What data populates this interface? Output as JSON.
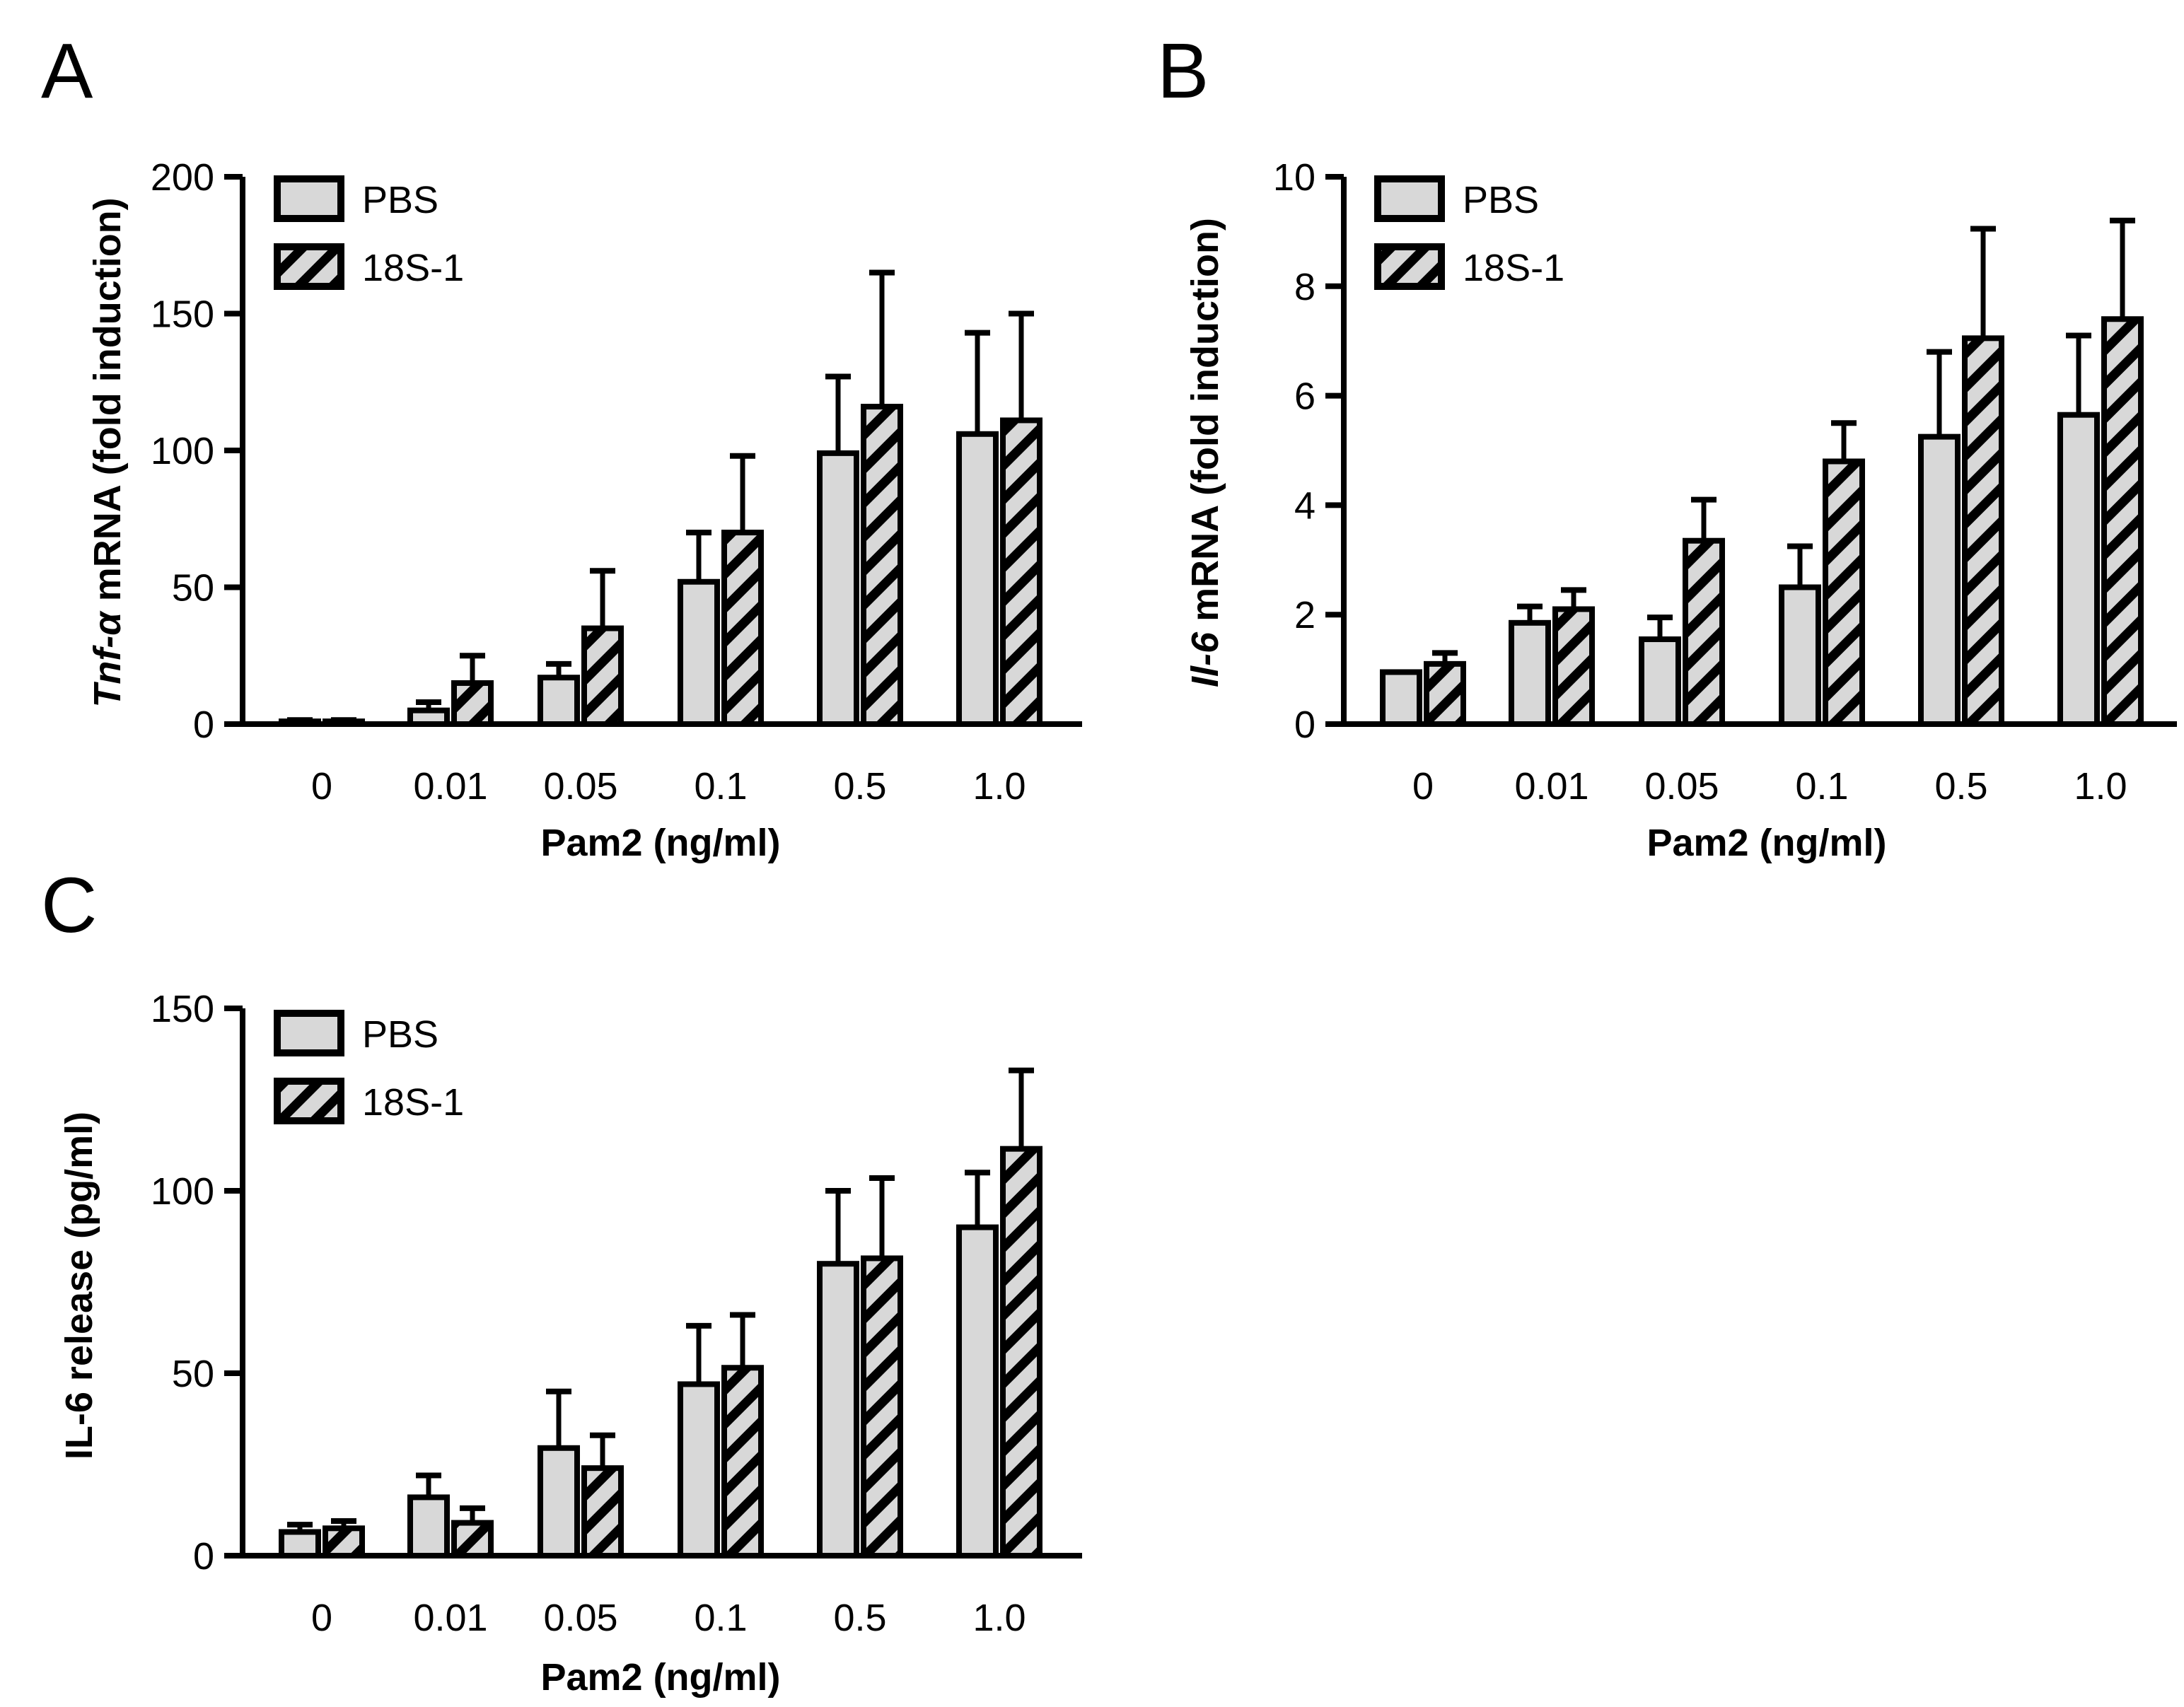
{
  "colors": {
    "bar_fill": "#d8d8d8",
    "stroke": "#000000",
    "hatch": "#000000",
    "background": "#ffffff"
  },
  "series_names": [
    "PBS",
    "18S-1"
  ],
  "chart_data": [
    {
      "panel": "A",
      "type": "bar",
      "categories": [
        "0",
        "0.01",
        "0.05",
        "0.1",
        "0.5",
        "1.0"
      ],
      "xlabel": "Pam2 (ng/ml)",
      "ylabel_italic": "Tnf-α",
      "ylabel_rest": " mRNA (fold induction)",
      "ylim": [
        0,
        200
      ],
      "yticks": [
        0,
        50,
        100,
        150,
        200
      ],
      "legend": [
        "PBS",
        "18S-1"
      ],
      "legend_position": "top-left",
      "series": [
        {
          "name": "PBS",
          "values": [
            1,
            5,
            17,
            52,
            99,
            106
          ],
          "errors": [
            0.5,
            3,
            5,
            18,
            28,
            37
          ]
        },
        {
          "name": "18S-1",
          "values": [
            1,
            15,
            35,
            70,
            116,
            111
          ],
          "errors": [
            0.5,
            10,
            21,
            28,
            49,
            39
          ]
        }
      ]
    },
    {
      "panel": "B",
      "type": "bar",
      "categories": [
        "0",
        "0.01",
        "0.05",
        "0.1",
        "0.5",
        "1.0"
      ],
      "xlabel": "Pam2 (ng/ml)",
      "ylabel_italic": "Il-6",
      "ylabel_rest": " mRNA (fold induction)",
      "ylim": [
        0,
        10
      ],
      "yticks": [
        0,
        2,
        4,
        6,
        8,
        10
      ],
      "legend": [
        "PBS",
        "18S-1"
      ],
      "legend_position": "top-left",
      "series": [
        {
          "name": "PBS",
          "values": [
            0.95,
            1.85,
            1.55,
            2.5,
            5.25,
            5.65
          ],
          "errors": [
            0,
            0.3,
            0.4,
            0.75,
            1.55,
            1.45
          ]
        },
        {
          "name": "18S-1",
          "values": [
            1.1,
            2.1,
            3.35,
            4.8,
            7.05,
            7.4
          ],
          "errors": [
            0.2,
            0.35,
            0.75,
            0.7,
            2.0,
            1.8
          ]
        }
      ]
    },
    {
      "panel": "C",
      "type": "bar",
      "categories": [
        "0",
        "0.01",
        "0.05",
        "0.1",
        "0.5",
        "1.0"
      ],
      "xlabel": "Pam2 (ng/ml)",
      "ylabel_italic": "",
      "ylabel_rest": "IL-6 release (pg/ml)",
      "ylim": [
        0,
        150
      ],
      "yticks": [
        0,
        50,
        100,
        150
      ],
      "legend": [
        "PBS",
        "18S-1"
      ],
      "legend_position": "top-left",
      "series": [
        {
          "name": "PBS",
          "values": [
            6.5,
            16,
            29.5,
            47,
            80,
            90
          ],
          "errors": [
            2,
            6,
            15.5,
            16,
            20,
            15
          ]
        },
        {
          "name": "18S-1",
          "values": [
            7.5,
            9,
            24,
            51.5,
            81.5,
            111.5
          ],
          "errors": [
            2,
            4,
            9,
            14.5,
            22,
            21.5
          ]
        }
      ]
    }
  ]
}
